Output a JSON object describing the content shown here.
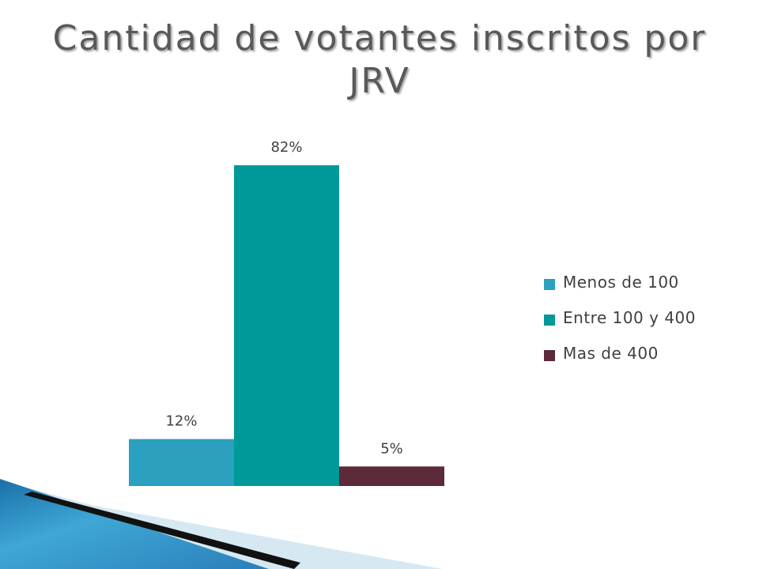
{
  "slide": {
    "title": "Cantidad de votantes inscritos por JRV"
  },
  "chart_data": {
    "type": "bar",
    "title": "Cantidad de votantes inscritos por JRV",
    "categories": [
      ""
    ],
    "series": [
      {
        "name": "Menos de 100",
        "values": [
          12
        ],
        "label": "12%",
        "color": "#2ba0bf"
      },
      {
        "name": "Entre 100 y 400",
        "values": [
          82
        ],
        "label": "82%",
        "color": "#009999"
      },
      {
        "name": "Mas de 400",
        "values": [
          5
        ],
        "label": "5%",
        "color": "#5c2a38"
      }
    ],
    "xlabel": "",
    "ylabel": "",
    "ylim": [
      0,
      100
    ],
    "grid": false,
    "legend_position": "right"
  },
  "colors": {
    "title_text": "#595959",
    "decor_blue": "#2a8fc0",
    "decor_light": "#d6e9f2",
    "decor_dark": "#111111"
  }
}
